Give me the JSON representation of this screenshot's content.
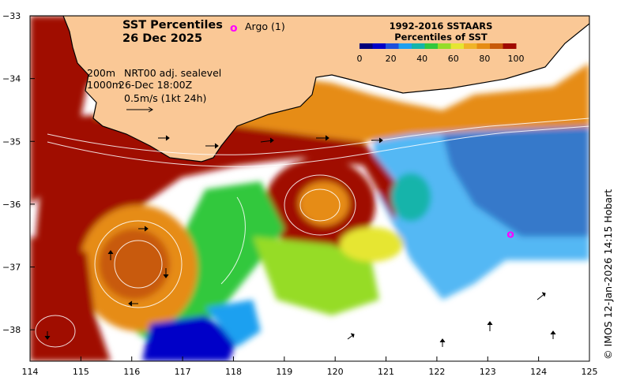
{
  "title": {
    "line1": "SST Percentiles",
    "line2": "26 Dec 2025"
  },
  "argo": {
    "symbol": "o",
    "label": "Argo (1)",
    "color": "#ff00ff",
    "floats": [
      {
        "lon": 123.45,
        "lat": -36.47
      }
    ]
  },
  "velocity_legend": {
    "line1_a": "200m",
    "line1_b": "NRT00 adj. sealevel",
    "line2_a": "1000m",
    "line2_b": "26-Dec 18:00Z",
    "line3": "0.5m/s (1kt 24h)"
  },
  "colorbar": {
    "title1": "1992-2016 SSTAARS",
    "title2": "Percentiles of SST",
    "tick_labels": [
      "0",
      "20",
      "40",
      "60",
      "80",
      "100"
    ],
    "colors": [
      "#00007a",
      "#0000c8",
      "#1e50dc",
      "#1ea0f0",
      "#14b4aa",
      "#32c83c",
      "#96dc28",
      "#e6e632",
      "#f0b428",
      "#e68c14",
      "#c85a0a",
      "#a00a00"
    ]
  },
  "map": {
    "lon_range": [
      114,
      125
    ],
    "lat_range": [
      -38.5,
      -33
    ],
    "x_ticks": [
      "114",
      "115",
      "116",
      "117",
      "118",
      "119",
      "120",
      "121",
      "122",
      "123",
      "124",
      "125"
    ],
    "y_ticks": [
      "-33",
      "-34",
      "-35",
      "-36",
      "-37",
      "-38"
    ],
    "land_color": "#fac896",
    "ocean_nodata_color": "#ffffff"
  },
  "credit": "© IMOS 12-Jan-2026 14:15 Hobart"
}
